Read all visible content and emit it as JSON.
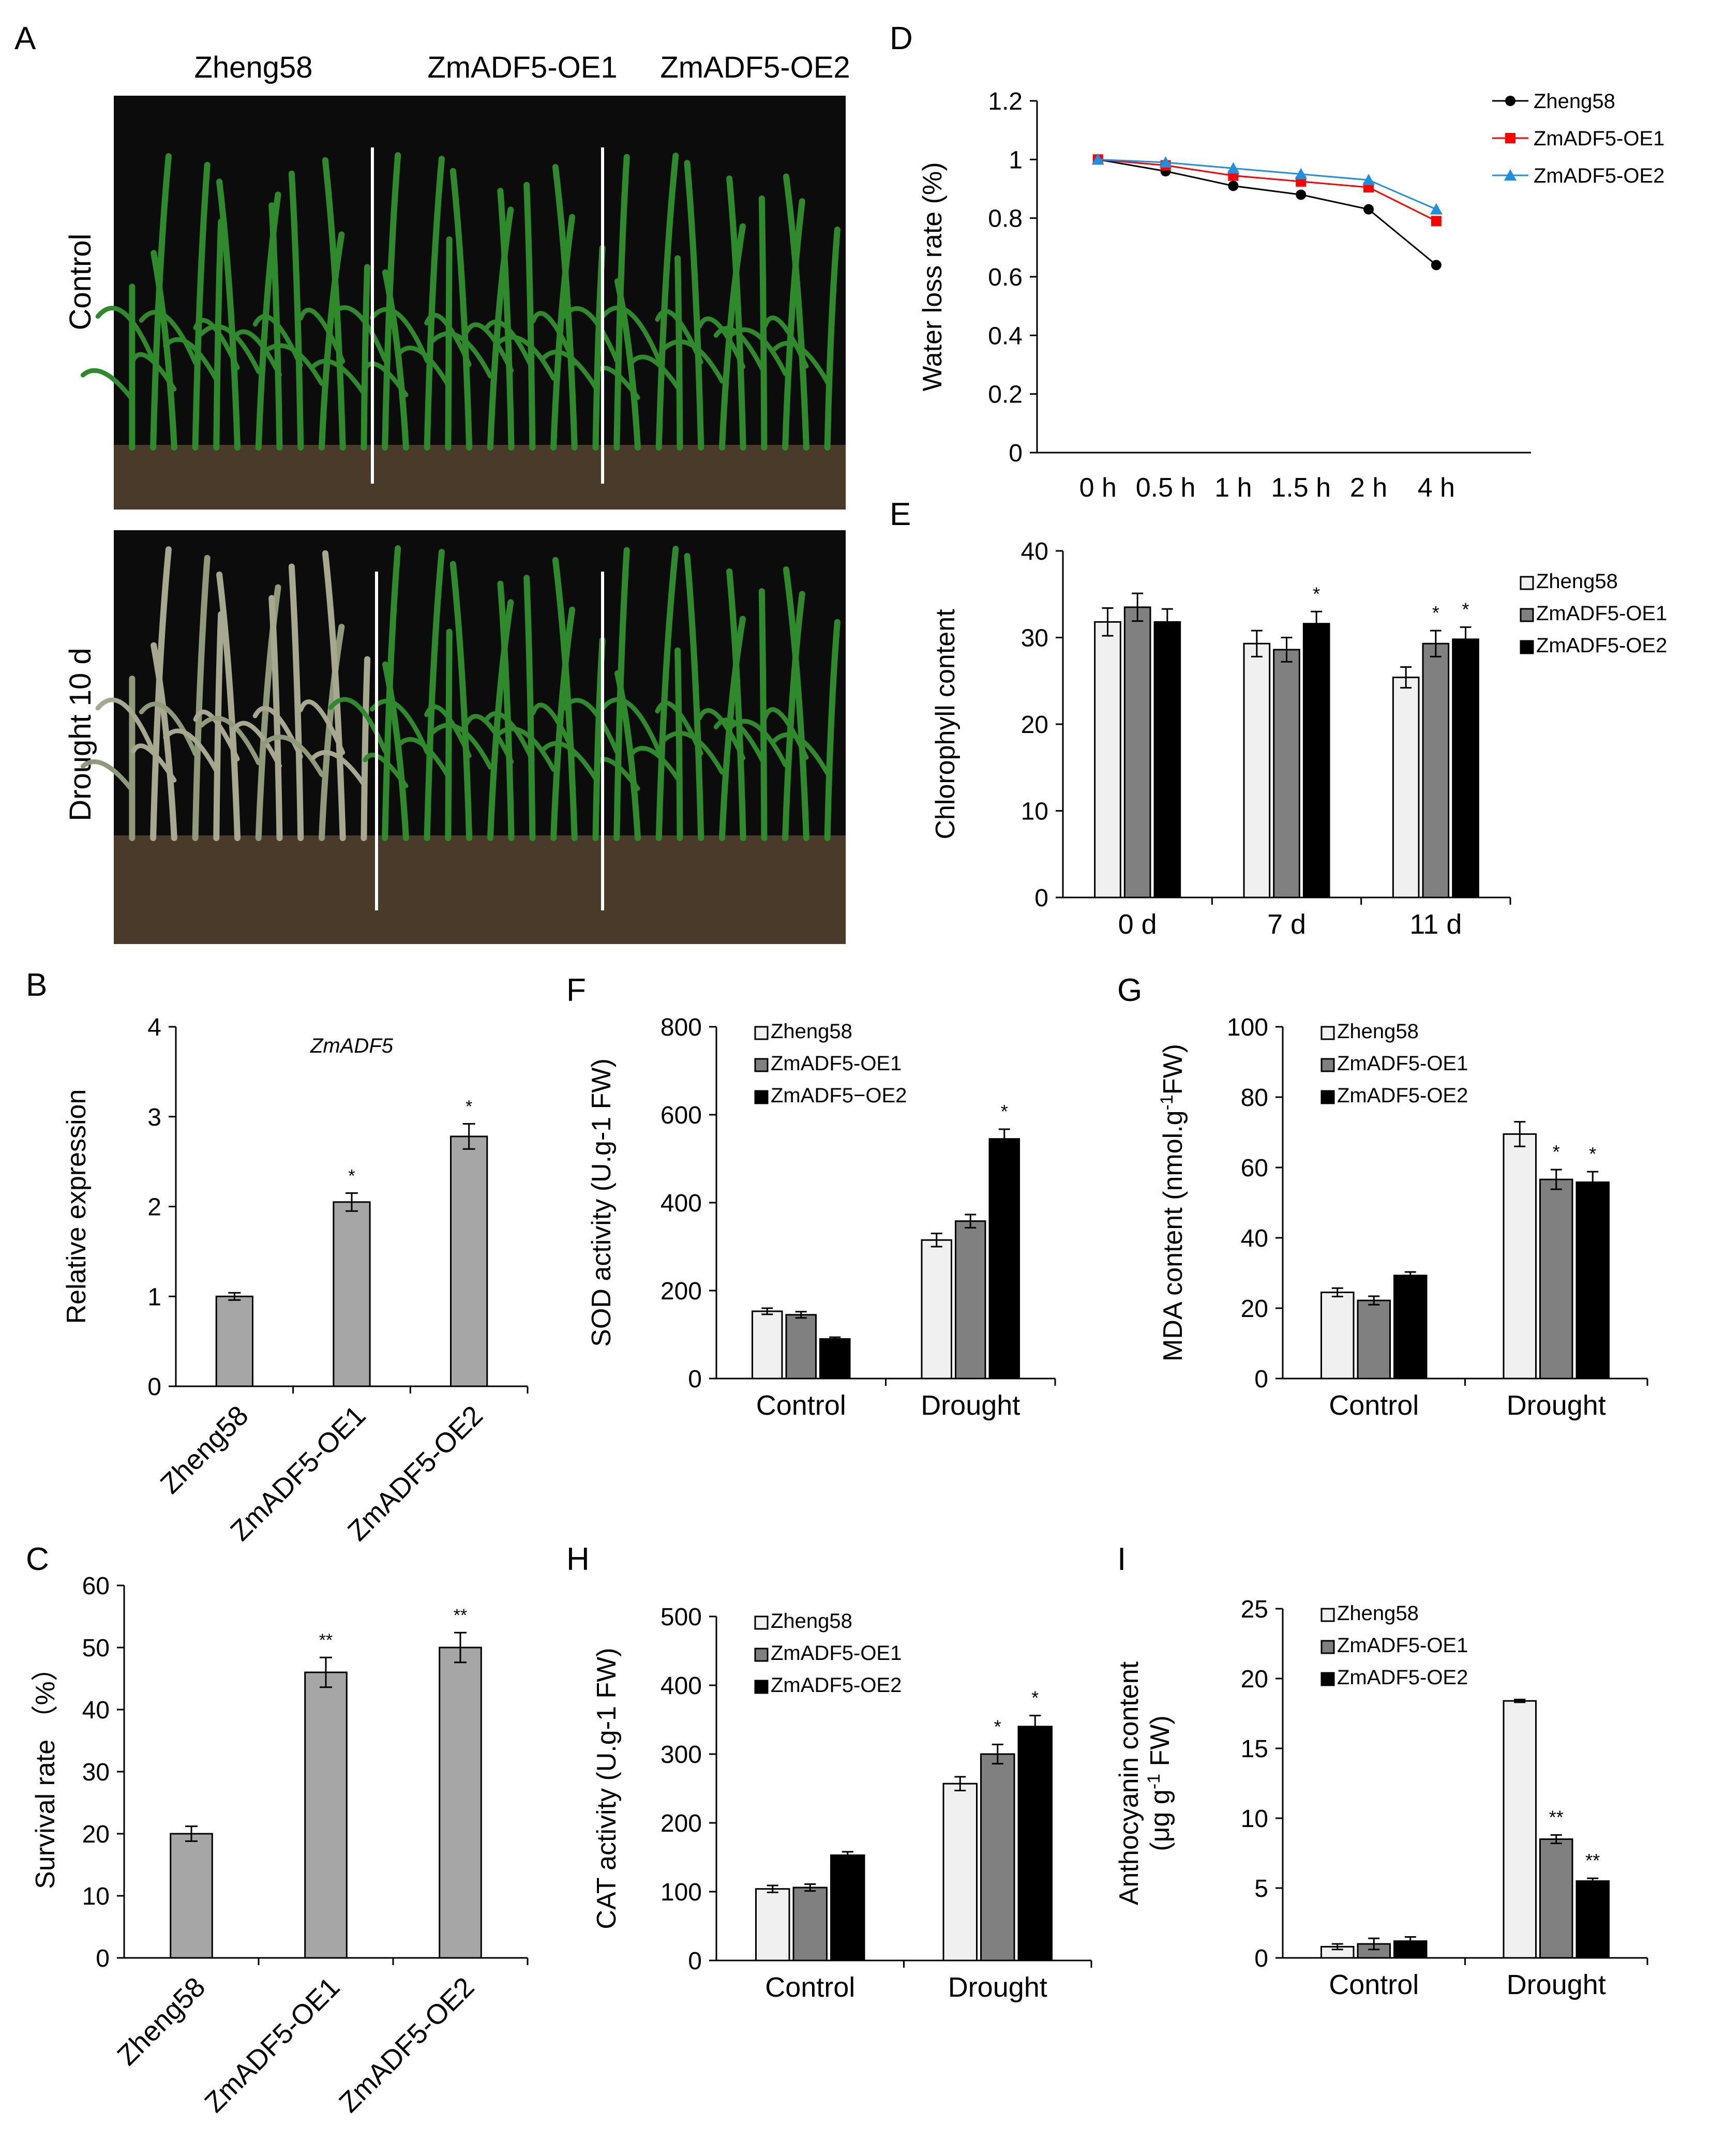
{
  "figure": {
    "panel_letters": [
      "A",
      "B",
      "C",
      "D",
      "E",
      "F",
      "G",
      "H",
      "I"
    ],
    "photos": {
      "genotype_labels": [
        "Zheng58",
        "ZmADF5-OE1",
        "ZmADF5-OE2"
      ],
      "row_labels": [
        "Control",
        "Drought 10 d"
      ]
    }
  },
  "colors": {
    "zheng58_bar": "#f0f0f0",
    "oe1_bar": "#808080",
    "oe2_bar": "#000000",
    "single_bar": "#a6a6a6",
    "line_zheng58": "#000000",
    "line_oe1": "#ff0000",
    "line_oe2": "#1f8fe0",
    "leaf": "#2f8a2b",
    "soil": "#4a3a2a"
  },
  "chart_data": [
    {
      "id": "B",
      "type": "bar",
      "title": "ZmADF5",
      "ylabel": "Relative expression",
      "ylim": [
        0,
        4
      ],
      "yticks": [
        "0",
        "1",
        "2",
        "3",
        "4"
      ],
      "categories": [
        "Zheng58",
        "ZmADF5-OE1",
        "ZmADF5-OE2"
      ],
      "values": [
        1.0,
        2.05,
        2.78
      ],
      "errors": [
        0.04,
        0.1,
        0.14
      ],
      "annotations": [
        "",
        "*",
        "*"
      ]
    },
    {
      "id": "C",
      "type": "bar",
      "ylabel": "Survival rate （%）",
      "ylim": [
        0,
        60
      ],
      "yticks": [
        "0",
        "10",
        "20",
        "30",
        "40",
        "50",
        "60"
      ],
      "categories": [
        "Zheng58",
        "ZmADF5-OE1",
        "ZmADF5-OE2"
      ],
      "values": [
        20,
        46,
        50
      ],
      "errors": [
        1.2,
        2.4,
        2.4
      ],
      "annotations": [
        "",
        "**",
        "**"
      ]
    },
    {
      "id": "D",
      "type": "line",
      "ylabel": "Water loss rate (%)",
      "ylim": [
        0,
        1.2
      ],
      "yticks": [
        "0",
        "0.2",
        "0.4",
        "0.6",
        "0.8",
        "1",
        "1.2"
      ],
      "x": [
        "0 h",
        "0.5 h",
        "1 h",
        "1.5 h",
        "2 h",
        "4 h"
      ],
      "legend": "top-right",
      "series": [
        {
          "name": "Zheng58",
          "values": [
            1.0,
            0.96,
            0.91,
            0.88,
            0.83,
            0.64
          ]
        },
        {
          "name": "ZmADF5-OE1",
          "values": [
            1.0,
            0.98,
            0.945,
            0.925,
            0.905,
            0.79
          ]
        },
        {
          "name": "ZmADF5-OE2",
          "values": [
            1.0,
            0.99,
            0.97,
            0.95,
            0.93,
            0.83
          ]
        }
      ]
    },
    {
      "id": "E",
      "type": "bar",
      "ylabel": "Chlorophyll content",
      "ylim": [
        0,
        40
      ],
      "yticks": [
        "0",
        "10",
        "20",
        "30",
        "40"
      ],
      "categories": [
        "0 d",
        "7 d",
        "11 d"
      ],
      "legend": "right",
      "series": [
        {
          "name": "Zheng58",
          "values": [
            31.8,
            29.3,
            25.4
          ],
          "errors": [
            1.6,
            1.5,
            1.2
          ],
          "annotations": [
            "",
            "",
            ""
          ]
        },
        {
          "name": "ZmADF5-OE1",
          "values": [
            33.5,
            28.6,
            29.3
          ],
          "errors": [
            1.6,
            1.4,
            1.5
          ],
          "annotations": [
            "",
            "",
            "*"
          ]
        },
        {
          "name": "ZmADF5-OE2",
          "values": [
            31.8,
            31.6,
            29.8
          ],
          "errors": [
            1.5,
            1.4,
            1.4
          ],
          "annotations": [
            "",
            "*",
            "*"
          ]
        }
      ]
    },
    {
      "id": "F",
      "type": "bar",
      "ylabel": "SOD activity (U.g-1 FW)",
      "ylim": [
        0,
        800
      ],
      "yticks": [
        "0",
        "200",
        "400",
        "600",
        "800"
      ],
      "categories": [
        "Control",
        "Drought"
      ],
      "legend": "top-left",
      "series": [
        {
          "name": "Zheng58",
          "values": [
            153,
            315
          ],
          "errors": [
            7,
            15
          ],
          "annotations": [
            "",
            ""
          ]
        },
        {
          "name": "ZmADF5-OE1",
          "values": [
            145,
            358
          ],
          "errors": [
            7,
            15
          ],
          "annotations": [
            "",
            ""
          ]
        },
        {
          "name": "ZmADF5−OE2",
          "values": [
            90,
            545
          ],
          "errors": [
            4,
            22
          ],
          "annotations": [
            "",
            "*"
          ]
        }
      ]
    },
    {
      "id": "G",
      "type": "bar",
      "ylabel": "CAT activity (U.g-1 FW)",
      "ylim": [
        0,
        500
      ],
      "yticks": [
        "0",
        "100",
        "200",
        "300",
        "400",
        "500"
      ],
      "categories": [
        "Control",
        "Drought"
      ],
      "legend": "top-left",
      "series": [
        {
          "name": "Zheng58",
          "values": [
            104,
            257
          ],
          "errors": [
            5,
            10
          ],
          "annotations": [
            "",
            ""
          ]
        },
        {
          "name": "ZmADF5-OE1",
          "values": [
            106,
            300
          ],
          "errors": [
            5,
            14
          ],
          "annotations": [
            "",
            "*"
          ]
        },
        {
          "name": "ZmADF5-OE2",
          "values": [
            153,
            340
          ],
          "errors": [
            5,
            16
          ],
          "annotations": [
            "",
            "*"
          ]
        }
      ]
    },
    {
      "id": "H",
      "type": "bar",
      "ylabel_parts": [
        "MDA content (nmol.g",
        "-1",
        "FW)"
      ],
      "ylim": [
        0,
        100
      ],
      "yticks": [
        "0",
        "20",
        "40",
        "60",
        "80",
        "100"
      ],
      "categories": [
        "Control",
        "Drought"
      ],
      "legend": "top-left",
      "series": [
        {
          "name": "Zheng58",
          "values": [
            24.5,
            69.5
          ],
          "errors": [
            1.2,
            3.5
          ],
          "annotations": [
            "",
            ""
          ]
        },
        {
          "name": "ZmADF5-OE1",
          "values": [
            22.2,
            56.6
          ],
          "errors": [
            1.2,
            2.8
          ],
          "annotations": [
            "",
            "*"
          ]
        },
        {
          "name": "ZmADF5-OE2",
          "values": [
            29.3,
            55.8
          ],
          "errors": [
            1.0,
            3.0
          ],
          "annotations": [
            "",
            "*"
          ]
        }
      ]
    },
    {
      "id": "I",
      "type": "bar",
      "ylabel_lines": [
        "Anthocyanin content"
      ],
      "ylabel_parts": [
        "(μg g",
        "-1",
        " FW)"
      ],
      "ylim": [
        0,
        25
      ],
      "yticks": [
        "0",
        "5",
        "10",
        "15",
        "20",
        "25"
      ],
      "categories": [
        "Control",
        "Drought"
      ],
      "legend": "top-left",
      "series": [
        {
          "name": "Zheng58",
          "values": [
            0.8,
            18.4
          ],
          "errors": [
            0.2,
            0.1
          ],
          "annotations": [
            "",
            ""
          ]
        },
        {
          "name": "ZmADF5-OE1",
          "values": [
            1.0,
            8.5
          ],
          "errors": [
            0.4,
            0.3
          ],
          "annotations": [
            "",
            "**"
          ]
        },
        {
          "name": "ZmADF5-OE2",
          "values": [
            1.2,
            5.5
          ],
          "errors": [
            0.3,
            0.2
          ],
          "annotations": [
            "",
            "**"
          ]
        }
      ]
    }
  ]
}
